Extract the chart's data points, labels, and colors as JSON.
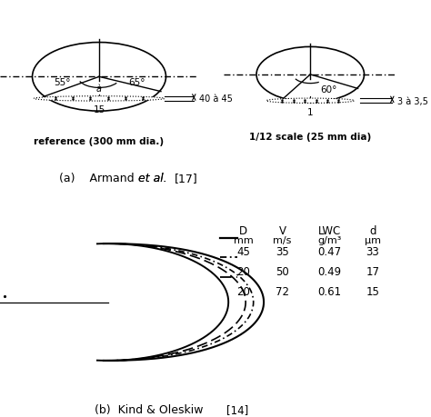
{
  "fig_width": 4.74,
  "fig_height": 4.6,
  "bg_color": "#ffffff",
  "ref_label": "reference (300 mm dia.)",
  "scale_label": "1/12 scale (25 mm dia)",
  "ref_angle_left": "55°",
  "ref_angle_right": "65°",
  "ref_angle_mid": "à",
  "ref_dim1": "40 à 45",
  "ref_dim2": "15",
  "scale_angle": "60°",
  "scale_dim1": "3 à 3,5",
  "scale_dim2": "1",
  "panel_a_parts": [
    "(a)    Armand ",
    "et al.",
    "[17]"
  ],
  "panel_b_text": "(b)  Kind & Oleskiw ",
  "panel_b_ref": "[14]",
  "table_col1": [
    "D",
    "mm",
    "45",
    "20",
    "20"
  ],
  "table_col2": [
    "V",
    "m/s",
    "35",
    "50",
    "72"
  ],
  "table_col3": [
    "LWC",
    "g/m³",
    "0.47",
    "0.49",
    "0.61"
  ],
  "table_col4": [
    "d",
    "μm",
    "33",
    "17",
    "15"
  ]
}
